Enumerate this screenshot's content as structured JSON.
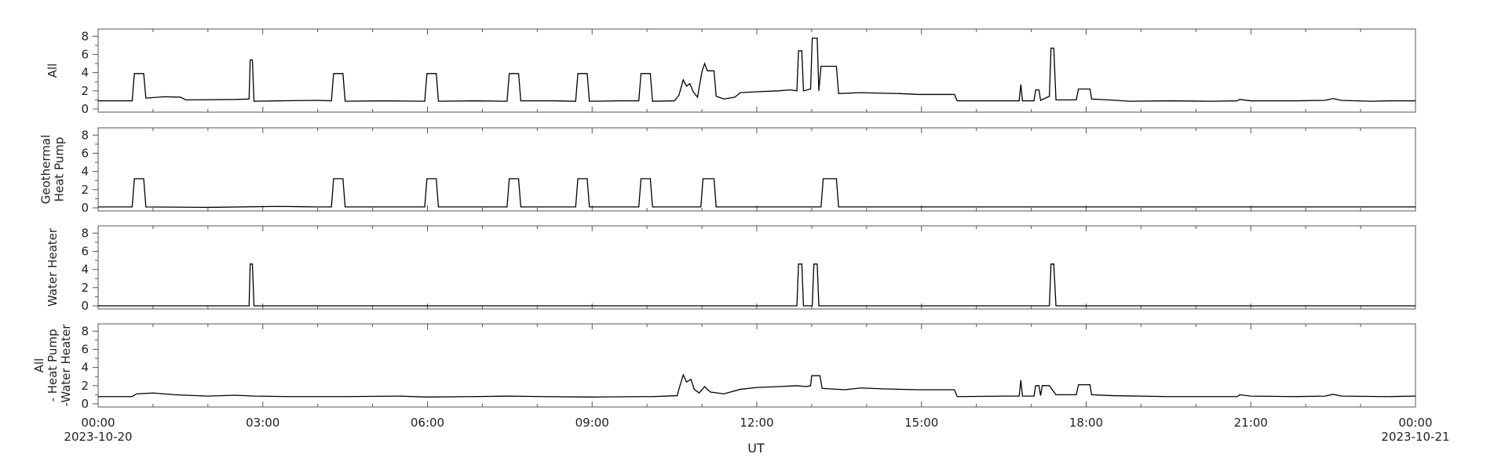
{
  "colors": {
    "line": "#000000",
    "axis": "#555555",
    "background": "#ffffff"
  },
  "chart_data": {
    "type": "line",
    "xlabel": "UT",
    "x_tick_labels": [
      "00:00",
      "03:00",
      "06:00",
      "09:00",
      "12:00",
      "15:00",
      "18:00",
      "21:00",
      "00:00"
    ],
    "x_tick_hours": [
      0,
      3,
      6,
      9,
      12,
      15,
      18,
      21,
      24
    ],
    "x_date_start": "2023-10-20",
    "x_date_end": "2023-10-21",
    "x_range_hours": [
      0,
      24
    ],
    "ylim": [
      0,
      8.8
    ],
    "y_ticks": [
      0,
      2,
      4,
      6,
      8
    ],
    "grid": false,
    "panels": [
      {
        "ylabel": [
          "All"
        ],
        "points": [
          [
            0,
            0.9
          ],
          [
            0.62,
            0.9
          ],
          [
            0.66,
            3.9
          ],
          [
            0.83,
            3.9
          ],
          [
            0.87,
            1.2
          ],
          [
            1.2,
            1.35
          ],
          [
            1.5,
            1.3
          ],
          [
            1.6,
            1.0
          ],
          [
            2.5,
            1.05
          ],
          [
            2.75,
            1.1
          ],
          [
            2.77,
            5.4
          ],
          [
            2.81,
            5.4
          ],
          [
            2.84,
            0.85
          ],
          [
            3.3,
            0.9
          ],
          [
            4.0,
            0.95
          ],
          [
            4.25,
            0.9
          ],
          [
            4.29,
            3.9
          ],
          [
            4.46,
            3.9
          ],
          [
            4.5,
            0.85
          ],
          [
            5.2,
            0.9
          ],
          [
            5.95,
            0.85
          ],
          [
            5.99,
            3.9
          ],
          [
            6.16,
            3.9
          ],
          [
            6.2,
            0.85
          ],
          [
            6.9,
            0.9
          ],
          [
            7.45,
            0.85
          ],
          [
            7.49,
            3.9
          ],
          [
            7.66,
            3.9
          ],
          [
            7.7,
            0.9
          ],
          [
            8.3,
            0.9
          ],
          [
            8.7,
            0.85
          ],
          [
            8.74,
            3.9
          ],
          [
            8.91,
            3.9
          ],
          [
            8.95,
            0.85
          ],
          [
            9.5,
            0.9
          ],
          [
            9.85,
            0.9
          ],
          [
            9.89,
            3.9
          ],
          [
            10.06,
            3.9
          ],
          [
            10.1,
            0.85
          ],
          [
            10.5,
            0.9
          ],
          [
            10.58,
            1.5
          ],
          [
            10.66,
            3.2
          ],
          [
            10.72,
            2.5
          ],
          [
            10.78,
            2.8
          ],
          [
            10.84,
            1.9
          ],
          [
            10.92,
            1.3
          ],
          [
            11.0,
            4.1
          ],
          [
            11.05,
            5.0
          ],
          [
            11.1,
            4.2
          ],
          [
            11.22,
            4.2
          ],
          [
            11.26,
            1.4
          ],
          [
            11.4,
            1.1
          ],
          [
            11.6,
            1.3
          ],
          [
            11.7,
            1.8
          ],
          [
            12.0,
            1.9
          ],
          [
            12.4,
            2.0
          ],
          [
            12.6,
            2.1
          ],
          [
            12.73,
            2.0
          ],
          [
            12.76,
            6.4
          ],
          [
            12.82,
            6.4
          ],
          [
            12.85,
            2.0
          ],
          [
            12.98,
            2.2
          ],
          [
            13.01,
            7.8
          ],
          [
            13.1,
            7.8
          ],
          [
            13.13,
            2.0
          ],
          [
            13.17,
            4.7
          ],
          [
            13.45,
            4.7
          ],
          [
            13.49,
            1.7
          ],
          [
            13.9,
            1.8
          ],
          [
            14.2,
            1.75
          ],
          [
            14.6,
            1.7
          ],
          [
            14.95,
            1.6
          ],
          [
            15.6,
            1.6
          ],
          [
            15.65,
            0.9
          ],
          [
            16.5,
            0.9
          ],
          [
            16.78,
            0.9
          ],
          [
            16.81,
            2.7
          ],
          [
            16.84,
            0.9
          ],
          [
            17.05,
            0.9
          ],
          [
            17.08,
            2.1
          ],
          [
            17.14,
            2.1
          ],
          [
            17.17,
            0.95
          ],
          [
            17.33,
            1.4
          ],
          [
            17.36,
            6.7
          ],
          [
            17.41,
            6.7
          ],
          [
            17.45,
            1.0
          ],
          [
            17.82,
            1.0
          ],
          [
            17.86,
            2.2
          ],
          [
            18.07,
            2.2
          ],
          [
            18.1,
            1.1
          ],
          [
            18.4,
            1.0
          ],
          [
            18.8,
            0.85
          ],
          [
            19.5,
            0.9
          ],
          [
            20.3,
            0.85
          ],
          [
            20.75,
            0.9
          ],
          [
            20.8,
            1.05
          ],
          [
            21.0,
            0.9
          ],
          [
            21.8,
            0.9
          ],
          [
            22.35,
            0.95
          ],
          [
            22.5,
            1.15
          ],
          [
            22.65,
            0.95
          ],
          [
            23.2,
            0.85
          ],
          [
            23.5,
            0.9
          ],
          [
            24.0,
            0.9
          ]
        ]
      },
      {
        "ylabel": [
          "Geothermal",
          "Heat Pump"
        ],
        "points": [
          [
            0,
            0.1
          ],
          [
            0.62,
            0.1
          ],
          [
            0.66,
            3.2
          ],
          [
            0.83,
            3.2
          ],
          [
            0.87,
            0.1
          ],
          [
            2.0,
            0.05
          ],
          [
            3.3,
            0.15
          ],
          [
            4.0,
            0.1
          ],
          [
            4.25,
            0.1
          ],
          [
            4.29,
            3.2
          ],
          [
            4.46,
            3.2
          ],
          [
            4.5,
            0.1
          ],
          [
            5.95,
            0.1
          ],
          [
            5.99,
            3.2
          ],
          [
            6.16,
            3.2
          ],
          [
            6.2,
            0.1
          ],
          [
            7.45,
            0.1
          ],
          [
            7.49,
            3.2
          ],
          [
            7.66,
            3.2
          ],
          [
            7.7,
            0.1
          ],
          [
            8.7,
            0.1
          ],
          [
            8.74,
            3.2
          ],
          [
            8.91,
            3.2
          ],
          [
            8.95,
            0.1
          ],
          [
            9.85,
            0.1
          ],
          [
            9.89,
            3.2
          ],
          [
            10.06,
            3.2
          ],
          [
            10.1,
            0.1
          ],
          [
            10.98,
            0.1
          ],
          [
            11.02,
            3.2
          ],
          [
            11.22,
            3.2
          ],
          [
            11.26,
            0.1
          ],
          [
            13.17,
            0.1
          ],
          [
            13.21,
            3.2
          ],
          [
            13.45,
            3.2
          ],
          [
            13.49,
            0.1
          ],
          [
            24.0,
            0.1
          ]
        ]
      },
      {
        "ylabel": [
          "Water Heater"
        ],
        "points": [
          [
            0,
            0.0
          ],
          [
            2.75,
            0.0
          ],
          [
            2.77,
            4.6
          ],
          [
            2.81,
            4.6
          ],
          [
            2.84,
            0.0
          ],
          [
            12.73,
            0.0
          ],
          [
            12.76,
            4.6
          ],
          [
            12.82,
            4.6
          ],
          [
            12.85,
            0.0
          ],
          [
            13.01,
            0.0
          ],
          [
            13.04,
            4.6
          ],
          [
            13.1,
            4.6
          ],
          [
            13.13,
            0.0
          ],
          [
            17.33,
            0.0
          ],
          [
            17.36,
            4.6
          ],
          [
            17.41,
            4.6
          ],
          [
            17.45,
            0.0
          ],
          [
            24.0,
            0.0
          ]
        ]
      },
      {
        "ylabel": [
          "All",
          "- Heat Pump",
          "-Water Heater"
        ],
        "points": [
          [
            0,
            0.8
          ],
          [
            0.62,
            0.8
          ],
          [
            0.7,
            1.1
          ],
          [
            1.0,
            1.2
          ],
          [
            1.4,
            1.0
          ],
          [
            2.0,
            0.85
          ],
          [
            2.5,
            0.95
          ],
          [
            2.85,
            0.85
          ],
          [
            3.5,
            0.8
          ],
          [
            4.25,
            0.8
          ],
          [
            4.5,
            0.8
          ],
          [
            5.5,
            0.85
          ],
          [
            6.0,
            0.75
          ],
          [
            6.8,
            0.8
          ],
          [
            7.5,
            0.85
          ],
          [
            8.1,
            0.8
          ],
          [
            9.0,
            0.75
          ],
          [
            9.9,
            0.8
          ],
          [
            10.1,
            0.8
          ],
          [
            10.55,
            0.9
          ],
          [
            10.58,
            1.6
          ],
          [
            10.66,
            3.2
          ],
          [
            10.72,
            2.4
          ],
          [
            10.8,
            2.7
          ],
          [
            10.86,
            1.6
          ],
          [
            10.95,
            1.2
          ],
          [
            11.05,
            1.9
          ],
          [
            11.15,
            1.3
          ],
          [
            11.4,
            1.1
          ],
          [
            11.7,
            1.6
          ],
          [
            12.0,
            1.8
          ],
          [
            12.4,
            1.9
          ],
          [
            12.73,
            2.0
          ],
          [
            12.9,
            1.9
          ],
          [
            12.98,
            2.0
          ],
          [
            13.0,
            3.1
          ],
          [
            13.15,
            3.1
          ],
          [
            13.19,
            1.7
          ],
          [
            13.6,
            1.55
          ],
          [
            13.9,
            1.75
          ],
          [
            14.3,
            1.65
          ],
          [
            14.95,
            1.55
          ],
          [
            15.6,
            1.55
          ],
          [
            15.65,
            0.8
          ],
          [
            16.5,
            0.85
          ],
          [
            16.78,
            0.85
          ],
          [
            16.81,
            2.6
          ],
          [
            16.84,
            0.85
          ],
          [
            17.05,
            0.85
          ],
          [
            17.08,
            2.0
          ],
          [
            17.14,
            2.0
          ],
          [
            17.17,
            0.9
          ],
          [
            17.2,
            2.0
          ],
          [
            17.33,
            2.0
          ],
          [
            17.45,
            1.0
          ],
          [
            17.82,
            1.0
          ],
          [
            17.86,
            2.1
          ],
          [
            18.07,
            2.1
          ],
          [
            18.1,
            1.0
          ],
          [
            18.5,
            0.9
          ],
          [
            19.5,
            0.8
          ],
          [
            20.75,
            0.8
          ],
          [
            20.8,
            1.0
          ],
          [
            21.0,
            0.85
          ],
          [
            21.8,
            0.8
          ],
          [
            22.35,
            0.85
          ],
          [
            22.5,
            1.05
          ],
          [
            22.65,
            0.85
          ],
          [
            23.5,
            0.8
          ],
          [
            24.0,
            0.85
          ]
        ]
      }
    ]
  }
}
